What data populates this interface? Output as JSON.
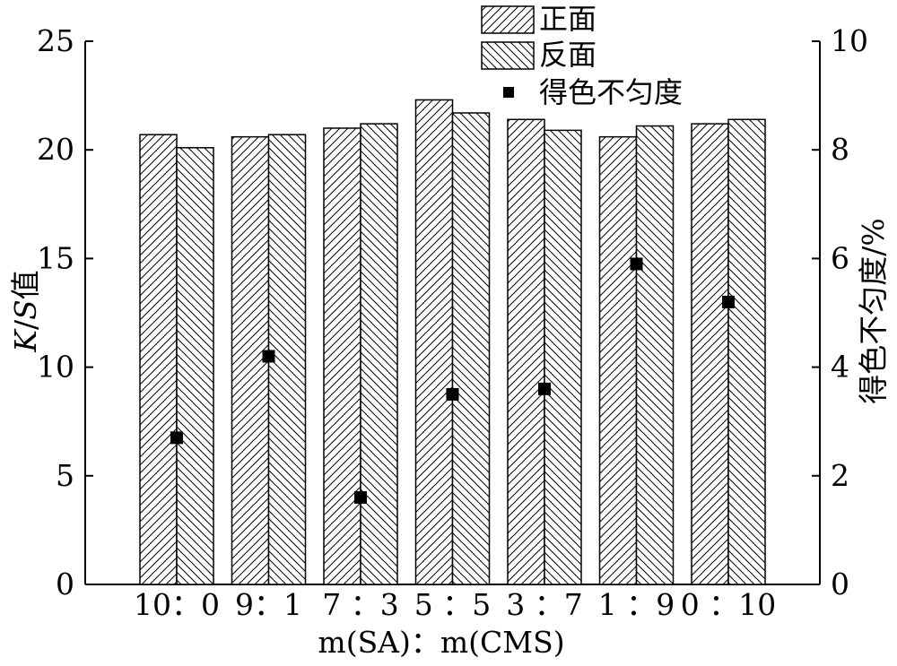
{
  "chart_data": {
    "type": "bar",
    "categories": [
      "10：0",
      "9：1",
      "7 ：3",
      "5 ：5",
      "3 ：7",
      "1 ：9",
      "0 ：10"
    ],
    "series": [
      {
        "name": "正面",
        "axis": "left",
        "values": [
          20.7,
          20.6,
          21.0,
          22.3,
          21.4,
          20.6,
          21.2
        ]
      },
      {
        "name": "反面",
        "axis": "left",
        "values": [
          20.1,
          20.7,
          21.2,
          21.7,
          20.9,
          21.1,
          21.4
        ]
      },
      {
        "name": "得色不匀度",
        "axis": "right",
        "kind": "scatter",
        "values": [
          2.7,
          4.2,
          1.6,
          3.5,
          3.6,
          5.9,
          5.2
        ]
      }
    ],
    "xlabel": "m(SA)：m(CMS)",
    "ylabel": "K/S值",
    "ylabel_italic": "K",
    "ylabel_mid": "/",
    "ylabel_italic2": "S",
    "ylabel_suffix": "值",
    "y2label": "得色不匀度/%",
    "ylim": [
      0,
      25
    ],
    "y2lim": [
      0,
      10
    ],
    "yticks": [
      0,
      5,
      10,
      15,
      20,
      25
    ],
    "y2ticks": [
      0,
      2,
      4,
      6,
      8,
      10
    ],
    "grid": false,
    "legend_position": "top-right",
    "colors": {
      "bar_fill": "#ffffff",
      "stroke": "#000000",
      "marker": "#000000"
    }
  }
}
